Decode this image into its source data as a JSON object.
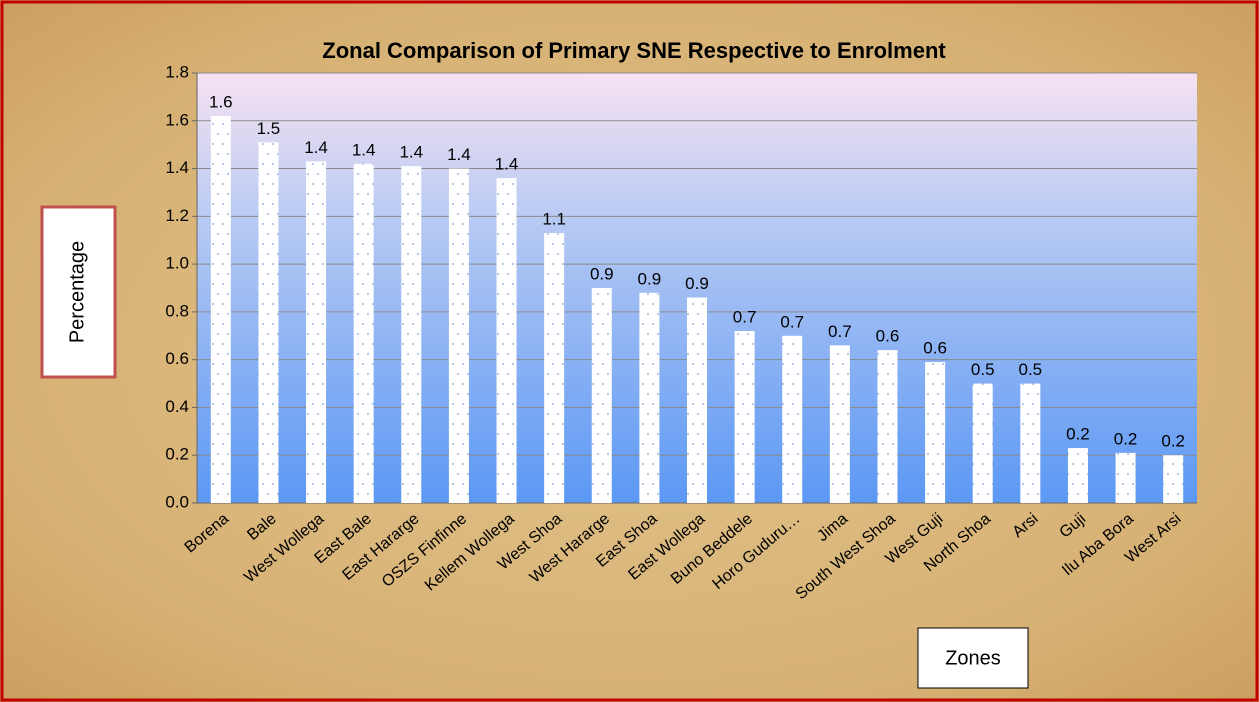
{
  "chart_data": {
    "type": "bar",
    "title": "Zonal Comparison of Primary SNE Respective to Enrolment",
    "ylabel": "Percentage",
    "xlabel": "Zones",
    "categories": [
      "Borena",
      "Bale",
      "West Wollega",
      "East Bale",
      "East Hararge",
      "OSZS Finfinne",
      "Kellem Wollega",
      "West Shoa",
      "West Hararge",
      "East Shoa",
      "East Wollega",
      "Buno Beddele",
      "Horo Guduru…",
      "Jima",
      "South West Shoa",
      "West Guji",
      "North Shoa",
      "Arsi",
      "Guji",
      "Ilu Aba Bora",
      "West Arsi"
    ],
    "values": [
      1.62,
      1.51,
      1.43,
      1.42,
      1.41,
      1.4,
      1.36,
      1.13,
      0.9,
      0.88,
      0.86,
      0.72,
      0.7,
      0.66,
      0.64,
      0.59,
      0.5,
      0.5,
      0.23,
      0.21,
      0.2
    ],
    "value_labels": [
      "1.6",
      "1.5",
      "1.4",
      "1.4",
      "1.4",
      "1.4",
      "1.4",
      "1.1",
      "0.9",
      "0.9",
      "0.9",
      "0.7",
      "0.7",
      "0.7",
      "0.6",
      "0.6",
      "0.5",
      "0.5",
      "0.2",
      "0.2",
      "0.2"
    ],
    "color": "#ffffff",
    "ylim": [
      0,
      1.8
    ],
    "yticks": [
      {
        "value": 0,
        "label": "0.0"
      },
      0.2,
      0.4,
      0.6,
      0.8,
      {
        "value": 1,
        "label": "1.0"
      },
      1.2,
      1.4,
      1.6,
      1.8
    ],
    "grid": true
  }
}
